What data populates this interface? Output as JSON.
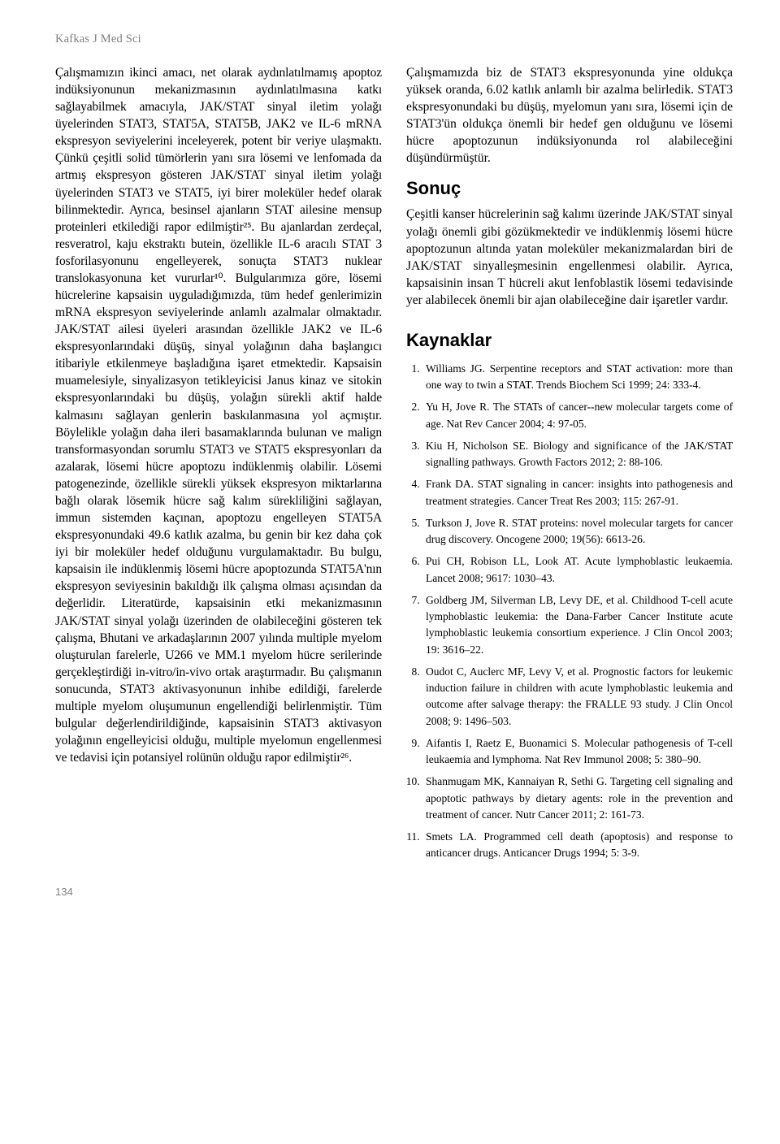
{
  "journal_header": "Kafkas J Med Sci",
  "page_number": "134",
  "left_para": "Çalışmamızın ikinci amacı, net olarak aydınlatılmamış apoptoz indüksiyonunun mekanizmasının aydınlatılmasına katkı sağlayabilmek amacıyla, JAK/STAT sinyal iletim yolağı üyelerinden STAT3, STAT5A, STAT5B, JAK2 ve IL-6 mRNA ekspresyon seviyelerini inceleyerek, potent bir veriye ulaşmaktı. Çünkü çeşitli solid tümörlerin yanı sıra lösemi ve lenfomada da artmış ekspresyon gösteren JAK/STAT sinyal iletim yolağı üyelerinden STAT3 ve STAT5, iyi birer moleküler hedef olarak bilinmektedir. Ayrıca, besinsel ajanların STAT ailesine mensup proteinleri etkilediği rapor edilmiştir²⁵. Bu ajanlardan zerdeçal, resveratrol, kaju ekstraktı butein, özellikle IL-6 aracılı STAT 3 fosforilasyonunu engelleyerek, sonuçta STAT3 nuklear translokasyonuna ket vururlar¹⁰. Bulgularımıza göre, lösemi hücrelerine kapsaisin uyguladığımızda, tüm hedef genlerimizin mRNA ekspresyon seviyelerinde anlamlı azalmalar olmaktadır. JAK/STAT ailesi üyeleri arasından özellikle JAK2 ve IL-6 ekspresyonlarındaki düşüş, sinyal yolağının daha başlangıcı itibariyle etkilenmeye başladığına işaret etmektedir. Kapsaisin muamelesiyle, sinyalizasyon tetikleyicisi Janus kinaz ve sitokin ekspresyonlarındaki bu düşüş, yolağın sürekli aktif halde kalmasını sağlayan genlerin baskılanmasına yol açmıştır. Böylelikle yolağın daha ileri basamaklarında bulunan ve malign transformasyondan sorumlu STAT3 ve STAT5 ekspresyonları da azalarak, lösemi hücre apoptozu indüklenmiş olabilir. Lösemi patogenezinde, özellikle sürekli yüksek ekspresyon miktarlarına bağlı olarak lösemik hücre sağ kalım sürekliliğini sağlayan, immun sistemden kaçınan, apoptozu engelleyen STAT5A ekspresyonundaki 49.6 katlık azalma, bu genin bir kez daha çok iyi bir moleküler hedef olduğunu vurgulamaktadır. Bu bulgu, kapsaisin ile indüklenmiş lösemi hücre apoptozunda STAT5A'nın ekspresyon seviyesinin bakıldığı ilk çalışma olması açısından da değerlidir. Literatürde, kapsaisinin etki mekanizmasının JAK/STAT sinyal yolağı üzerinden de olabileceğini gösteren tek çalışma, Bhutani ve arkadaşlarının 2007 yılında multiple myelom oluşturulan farelerle, U266 ve MM.1 myelom hücre serilerinde gerçekleştirdiği in-vitro/in-vivo ortak araştırmadır. Bu çalışmanın sonucunda, STAT3 aktivasyonunun inhibe edildiği, farelerde multiple myelom oluşumunun engellendiği belirlenmiştir. Tüm bulgular değerlendirildiğinde, kapsaisinin STAT3 aktivasyon yolağının engelleyicisi olduğu, multiple myelomun engellenmesi ve tedavisi için potansiyel rolünün olduğu rapor edilmiştir²⁶.",
  "right_para1": "Çalışmamızda biz de STAT3 ekspresyonunda yine oldukça yüksek oranda, 6.02 katlık anlamlı bir azalma belirledik. STAT3 ekspresyonundaki bu düşüş, myelomun yanı sıra, lösemi için de STAT3'ün oldukça önemli bir hedef gen olduğunu ve lösemi hücre apoptozunun indüksiyonunda rol alabileceğini düşündürmüştür.",
  "section_sonuc_title": "Sonuç",
  "right_para2": "Çeşitli kanser hücrelerinin sağ kalımı üzerinde JAK/STAT sinyal yolağı önemli gibi gözükmektedir ve indüklenmiş lösemi hücre apoptozunun altında yatan moleküler mekanizmalardan biri de JAK/STAT sinyalleşmesinin engellenmesi olabilir. Ayrıca, kapsaisinin insan T hücreli akut lenfoblastik lösemi tedavisinde yer alabilecek önemli bir ajan olabileceğine dair işaretler vardır.",
  "section_refs_title": "Kaynaklar",
  "refs": [
    "Williams JG. Serpentine receptors and STAT activation: more than one way to twin a STAT. Trends Biochem Sci 1999; 24: 333-4.",
    "Yu H, Jove R. The STATs of cancer--new molecular targets come of age. Nat Rev Cancer 2004; 4: 97-05.",
    "Kiu H, Nicholson SE. Biology and significance of the JAK/STAT signalling pathways. Growth Factors 2012; 2: 88-106.",
    "Frank DA. STAT signaling in cancer: insights into pathogenesis and treatment strategies. Cancer Treat Res 2003; 115: 267-91.",
    "Turkson J, Jove R. STAT proteins: novel molecular targets for cancer drug discovery. Oncogene 2000; 19(56): 6613-26.",
    "Pui CH, Robison LL, Look AT. Acute lymphoblastic leukaemia. Lancet 2008; 9617: 1030–43.",
    "Goldberg JM, Silverman LB, Levy DE, et al. Childhood T-cell acute lymphoblastic leukemia: the Dana-Farber Cancer Institute acute lymphoblastic leukemia consortium experience. J Clin Oncol  2003; 19: 3616–22.",
    "Oudot C, Auclerc MF, Levy V, et al. Prognostic factors for leukemic induction failure in children with acute lymphoblastic leukemia and outcome after salvage therapy: the FRALLE 93 study. J Clin Oncol 2008; 9: 1496–503.",
    "Aifantis I, Raetz E, Buonamici S. Molecular pathogenesis of T-cell leukaemia and lymphoma. Nat Rev Immunol 2008; 5: 380–90.",
    "Shanmugam MK, Kannaiyan R, Sethi G. Targeting cell signaling and apoptotic pathways by dietary agents: role in the prevention and treatment of cancer. Nutr Cancer 2011; 2: 161-73.",
    "Smets LA. Programmed cell death (apoptosis) and response to anticancer drugs. Anticancer Drugs 1994; 5: 3-9."
  ]
}
